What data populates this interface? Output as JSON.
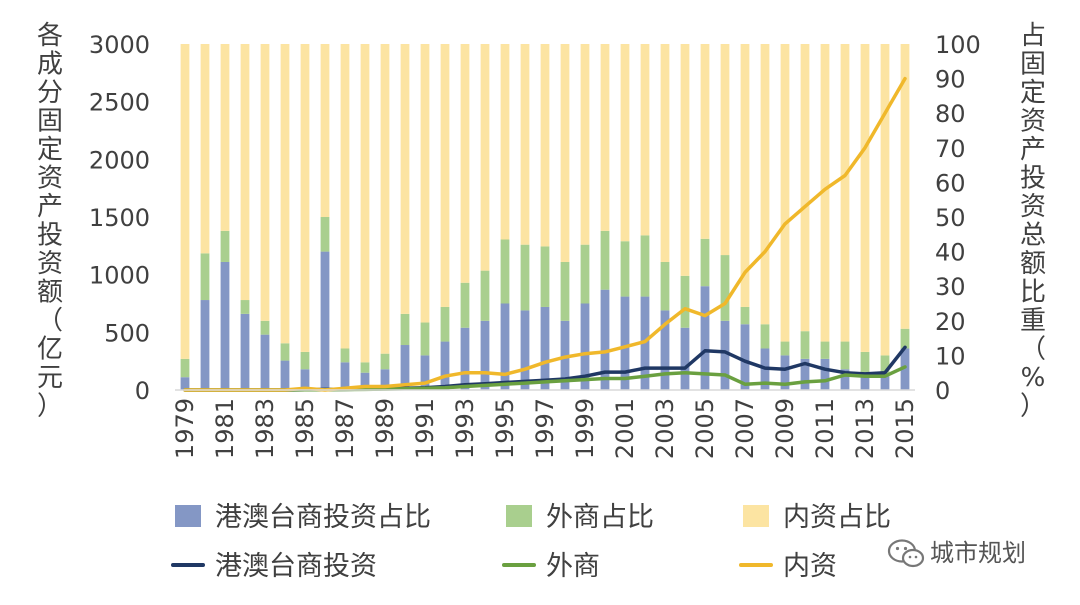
{
  "chart_data": {
    "type": "bar",
    "title": "",
    "ylabel_left": "各成分固定资产投资额（亿元）",
    "ylabel_right": "占固定资产投资总额比重（%）",
    "ylim_left": [
      0,
      3000
    ],
    "ylim_right": [
      0,
      100
    ],
    "yticks_left": [
      "0",
      "500",
      "1000",
      "1500",
      "2000",
      "2500",
      "3000"
    ],
    "yticks_right": [
      "0",
      "10",
      "20",
      "30",
      "40",
      "50",
      "60",
      "70",
      "80",
      "90",
      "100"
    ],
    "xtick_labels": [
      "1979",
      "1981",
      "1983",
      "1985",
      "1987",
      "1989",
      "1991",
      "1993",
      "1995",
      "1997",
      "1999",
      "2001",
      "2003",
      "2005",
      "2007",
      "2009",
      "2011",
      "2013",
      "2015"
    ],
    "categories": [
      "1979",
      "1980",
      "1981",
      "1982",
      "1983",
      "1984",
      "1985",
      "1986",
      "1987",
      "1988",
      "1989",
      "1990",
      "1991",
      "1992",
      "1993",
      "1994",
      "1995",
      "1996",
      "1997",
      "1998",
      "1999",
      "2000",
      "2001",
      "2002",
      "2003",
      "2004",
      "2005",
      "2006",
      "2007",
      "2008",
      "2009",
      "2010",
      "2011",
      "2012",
      "2013",
      "2014",
      "2015"
    ],
    "stacked_bars": [
      {
        "name": "港澳台商投资占比",
        "color": "#8497c5",
        "values": [
          3.7,
          26,
          37,
          22,
          16,
          8.5,
          6,
          40,
          8,
          5,
          6,
          13,
          10,
          14,
          18,
          20,
          25,
          23,
          24,
          20,
          25,
          29,
          27,
          27,
          23,
          18,
          30,
          20,
          19,
          12,
          10,
          9,
          9,
          6,
          5,
          4,
          12
        ]
      },
      {
        "name": "外商占比",
        "color": "#a9cf8e",
        "values": [
          5.3,
          13.5,
          9,
          4,
          4,
          5,
          5,
          10,
          4,
          3,
          4.5,
          9,
          9.5,
          10,
          13,
          14.5,
          18.5,
          19,
          17.5,
          17,
          17,
          17,
          16,
          17.7,
          14,
          15,
          13.7,
          19,
          5,
          7,
          4,
          8,
          5,
          8,
          6,
          6,
          5.7
        ]
      },
      {
        "name": "内资占比",
        "color": "#fce4a2",
        "values": [
          91,
          60.5,
          54,
          74,
          80,
          86.5,
          89,
          50,
          88,
          92,
          89.5,
          78,
          80.5,
          76,
          69,
          65.5,
          56.5,
          58,
          58.5,
          63,
          58,
          54,
          57,
          55.3,
          63,
          67,
          56.3,
          61,
          76,
          81,
          86,
          83,
          86,
          86,
          89,
          90,
          82.3
        ]
      }
    ],
    "line_series": [
      {
        "name": "港澳台商投资",
        "color": "#203864",
        "axis": "left",
        "values": [
          0,
          0,
          0,
          0,
          0,
          0,
          2,
          5,
          5,
          8,
          10,
          15,
          20,
          30,
          45,
          55,
          65,
          75,
          85,
          95,
          120,
          155,
          155,
          190,
          190,
          190,
          340,
          330,
          250,
          190,
          180,
          230,
          180,
          150,
          140,
          150,
          370
        ]
      },
      {
        "name": "外商",
        "color": "#6aa040",
        "axis": "left",
        "values": [
          0,
          0,
          0,
          0,
          0,
          0,
          2,
          3,
          4,
          5,
          8,
          10,
          15,
          20,
          30,
          40,
          50,
          60,
          70,
          80,
          90,
          100,
          100,
          120,
          140,
          150,
          140,
          130,
          50,
          60,
          50,
          70,
          80,
          130,
          120,
          120,
          200
        ]
      },
      {
        "name": "内资",
        "color": "#f0b82b",
        "axis": "right",
        "values": [
          0,
          0,
          0,
          0,
          0,
          0,
          0.5,
          0,
          0.5,
          1,
          1,
          1.5,
          2,
          4,
          5,
          5,
          4.5,
          6,
          8,
          9.5,
          10.5,
          11,
          12.5,
          14,
          19,
          23.5,
          21.5,
          25,
          34,
          40,
          48,
          53,
          58,
          62,
          70,
          80,
          90
        ]
      }
    ]
  },
  "legend": [
    {
      "label": "港澳台商投资占比",
      "kind": "box",
      "color": "#8497c5"
    },
    {
      "label": "外商占比",
      "kind": "box",
      "color": "#a9cf8e"
    },
    {
      "label": "内资占比",
      "kind": "box",
      "color": "#fce4a2"
    },
    {
      "label": "港澳台商投资",
      "kind": "line",
      "color": "#203864"
    },
    {
      "label": "外商",
      "kind": "line",
      "color": "#6aa040"
    },
    {
      "label": "内资",
      "kind": "line",
      "color": "#f0b82b"
    }
  ],
  "watermark": {
    "text": "城市规划",
    "icon": "wechat-icon"
  }
}
